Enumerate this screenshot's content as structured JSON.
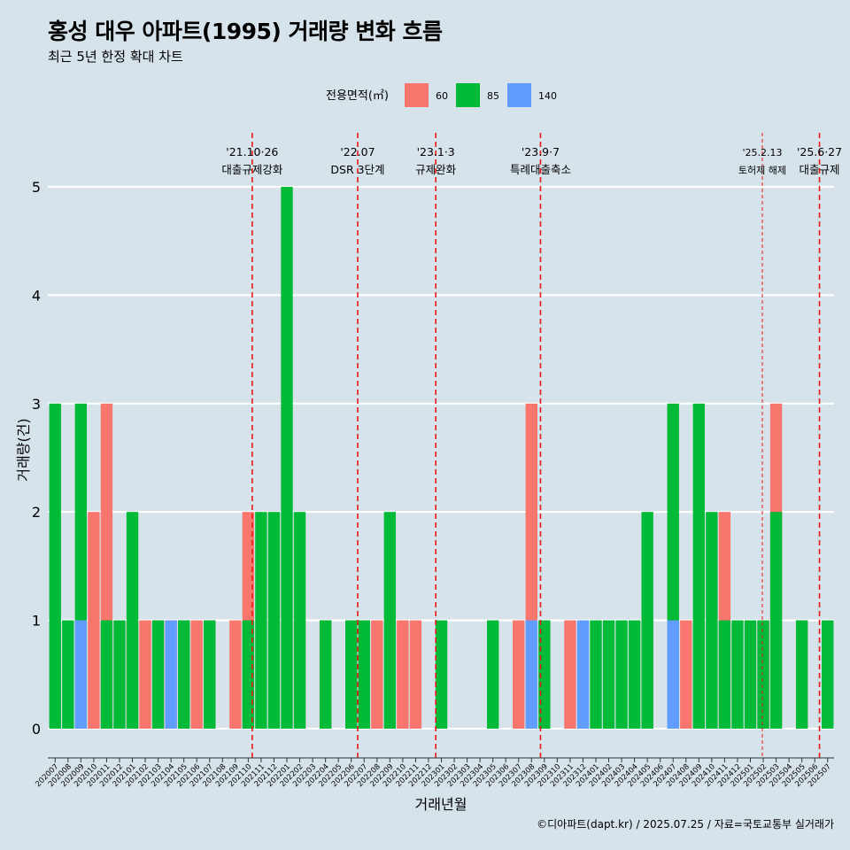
{
  "title": "홍성 대우 아파트(1995) 거래량 변화 흐름",
  "subtitle": "최근 5년 한정 확대 차트",
  "footer": "©디아파트(dapt.kr) / 2025.07.25 / 자료=국토교통부 실거래가",
  "colors": {
    "background": "#d6e3ea",
    "grid": "#ffffff",
    "event_line": "#e8191a"
  },
  "chart_data": {
    "type": "bar",
    "stacking": "stacked",
    "xlabel": "거래년월",
    "ylabel": "거래량(건)",
    "ylim": [
      0,
      5
    ],
    "yticks": [
      0,
      1,
      2,
      3,
      4,
      5
    ],
    "legend": {
      "title": "전용면적(㎡)",
      "position": "top"
    },
    "categories": [
      "202007",
      "202008",
      "202009",
      "202010",
      "202011",
      "202012",
      "202101",
      "202102",
      "202103",
      "202104",
      "202105",
      "202106",
      "202107",
      "202108",
      "202109",
      "202110",
      "202111",
      "202112",
      "202201",
      "202202",
      "202203",
      "202204",
      "202205",
      "202206",
      "202207",
      "202208",
      "202209",
      "202210",
      "202211",
      "202212",
      "202301",
      "202302",
      "202303",
      "202304",
      "202305",
      "202306",
      "202307",
      "202308",
      "202309",
      "202310",
      "202311",
      "202312",
      "202401",
      "202402",
      "202403",
      "202404",
      "202405",
      "202406",
      "202407",
      "202408",
      "202409",
      "202410",
      "202411",
      "202412",
      "202501",
      "202502",
      "202503",
      "202504",
      "202505",
      "202506",
      "202507"
    ],
    "bars": [
      {
        "x": "202007",
        "s": "85",
        "v": 3
      },
      {
        "x": "202008",
        "s": "85",
        "v": 1
      },
      {
        "x": "202009",
        "s": "85",
        "v": 3
      },
      {
        "x": "202009",
        "s": "140",
        "v": 1
      },
      {
        "x": "202010",
        "s": "60",
        "v": 2
      },
      {
        "x": "202011",
        "s": "60",
        "v": 3
      },
      {
        "x": "202011",
        "s": "85",
        "v": 1
      },
      {
        "x": "202012",
        "s": "85",
        "v": 1
      },
      {
        "x": "202101",
        "s": "60",
        "v": 1
      },
      {
        "x": "202101",
        "s": "85",
        "v": 2
      },
      {
        "x": "202102",
        "s": "60",
        "v": 1
      },
      {
        "x": "202103",
        "s": "60",
        "v": 1
      },
      {
        "x": "202103",
        "s": "85",
        "v": 1
      },
      {
        "x": "202104",
        "s": "60",
        "v": 1
      },
      {
        "x": "202104",
        "s": "140",
        "v": 1
      },
      {
        "x": "202105",
        "s": "60",
        "v": 1
      },
      {
        "x": "202105",
        "s": "85",
        "v": 1
      },
      {
        "x": "202106",
        "s": "60",
        "v": 1
      },
      {
        "x": "202107",
        "s": "60",
        "v": 1
      },
      {
        "x": "202107",
        "s": "85",
        "v": 1
      },
      {
        "x": "202109",
        "s": "60",
        "v": 1
      },
      {
        "x": "202110",
        "s": "60",
        "v": 2
      },
      {
        "x": "202110",
        "s": "85",
        "v": 1
      },
      {
        "x": "202111",
        "s": "85",
        "v": 2
      },
      {
        "x": "202112",
        "s": "85",
        "v": 2
      },
      {
        "x": "202201",
        "s": "85",
        "v": 5
      },
      {
        "x": "202202",
        "s": "60",
        "v": 1
      },
      {
        "x": "202202",
        "s": "85",
        "v": 2
      },
      {
        "x": "202204",
        "s": "60",
        "v": 1
      },
      {
        "x": "202204",
        "s": "85",
        "v": 1
      },
      {
        "x": "202206",
        "s": "60",
        "v": 1
      },
      {
        "x": "202206",
        "s": "85",
        "v": 1
      },
      {
        "x": "202207",
        "s": "60",
        "v": 1
      },
      {
        "x": "202207",
        "s": "85",
        "v": 1
      },
      {
        "x": "202208",
        "s": "60",
        "v": 1
      },
      {
        "x": "202209",
        "s": "85",
        "v": 2
      },
      {
        "x": "202210",
        "s": "60",
        "v": 1
      },
      {
        "x": "202211",
        "s": "60",
        "v": 1
      },
      {
        "x": "202301",
        "s": "85",
        "v": 1
      },
      {
        "x": "202305",
        "s": "85",
        "v": 1
      },
      {
        "x": "202307",
        "s": "60",
        "v": 1
      },
      {
        "x": "202308",
        "s": "60",
        "v": 3
      },
      {
        "x": "202308",
        "s": "140",
        "v": 1
      },
      {
        "x": "202309",
        "s": "85",
        "v": 1
      },
      {
        "x": "202311",
        "s": "60",
        "v": 1
      },
      {
        "x": "202312",
        "s": "140",
        "v": 1
      },
      {
        "x": "202401",
        "s": "85",
        "v": 1
      },
      {
        "x": "202402",
        "s": "85",
        "v": 1
      },
      {
        "x": "202403",
        "s": "85",
        "v": 1
      },
      {
        "x": "202404",
        "s": "85",
        "v": 1
      },
      {
        "x": "202405",
        "s": "60",
        "v": 1
      },
      {
        "x": "202405",
        "s": "85",
        "v": 2
      },
      {
        "x": "202407",
        "s": "85",
        "v": 3
      },
      {
        "x": "202407",
        "s": "140",
        "v": 1
      },
      {
        "x": "202408",
        "s": "60",
        "v": 1
      },
      {
        "x": "202409",
        "s": "85",
        "v": 3
      },
      {
        "x": "202410",
        "s": "85",
        "v": 2
      },
      {
        "x": "202411",
        "s": "60",
        "v": 2
      },
      {
        "x": "202411",
        "s": "85",
        "v": 1
      },
      {
        "x": "202412",
        "s": "85",
        "v": 1
      },
      {
        "x": "202501",
        "s": "85",
        "v": 1
      },
      {
        "x": "202502",
        "s": "60",
        "v": 1
      },
      {
        "x": "202502",
        "s": "85",
        "v": 1
      },
      {
        "x": "202503",
        "s": "60",
        "v": 3
      },
      {
        "x": "202503",
        "s": "85",
        "v": 2
      },
      {
        "x": "202505",
        "s": "60",
        "v": 1
      },
      {
        "x": "202505",
        "s": "85",
        "v": 1
      },
      {
        "x": "202507",
        "s": "85",
        "v": 1
      }
    ],
    "series": [
      {
        "name": "60",
        "color": "#f8766d"
      },
      {
        "name": "85",
        "color": "#00ba38"
      },
      {
        "name": "140",
        "color": "#619cff"
      }
    ],
    "events": [
      {
        "date": "2021-10-26",
        "date_label": "'21.10·26",
        "label": "대출규제강화"
      },
      {
        "date": "2022-07-01",
        "date_label": "'22.07",
        "label": "DSR 3단계"
      },
      {
        "date": "2023-01-03",
        "date_label": "'23.1·3",
        "label": "규제완화"
      },
      {
        "date": "2023-09-07",
        "date_label": "'23.9·7",
        "label": "특례대출축소"
      },
      {
        "date": "2025-02-13",
        "date_label": "'25.2.13",
        "label": "토허제 해제"
      },
      {
        "date": "2025-06-27",
        "date_label": "'25.6·27",
        "label": "대출규제"
      }
    ]
  }
}
